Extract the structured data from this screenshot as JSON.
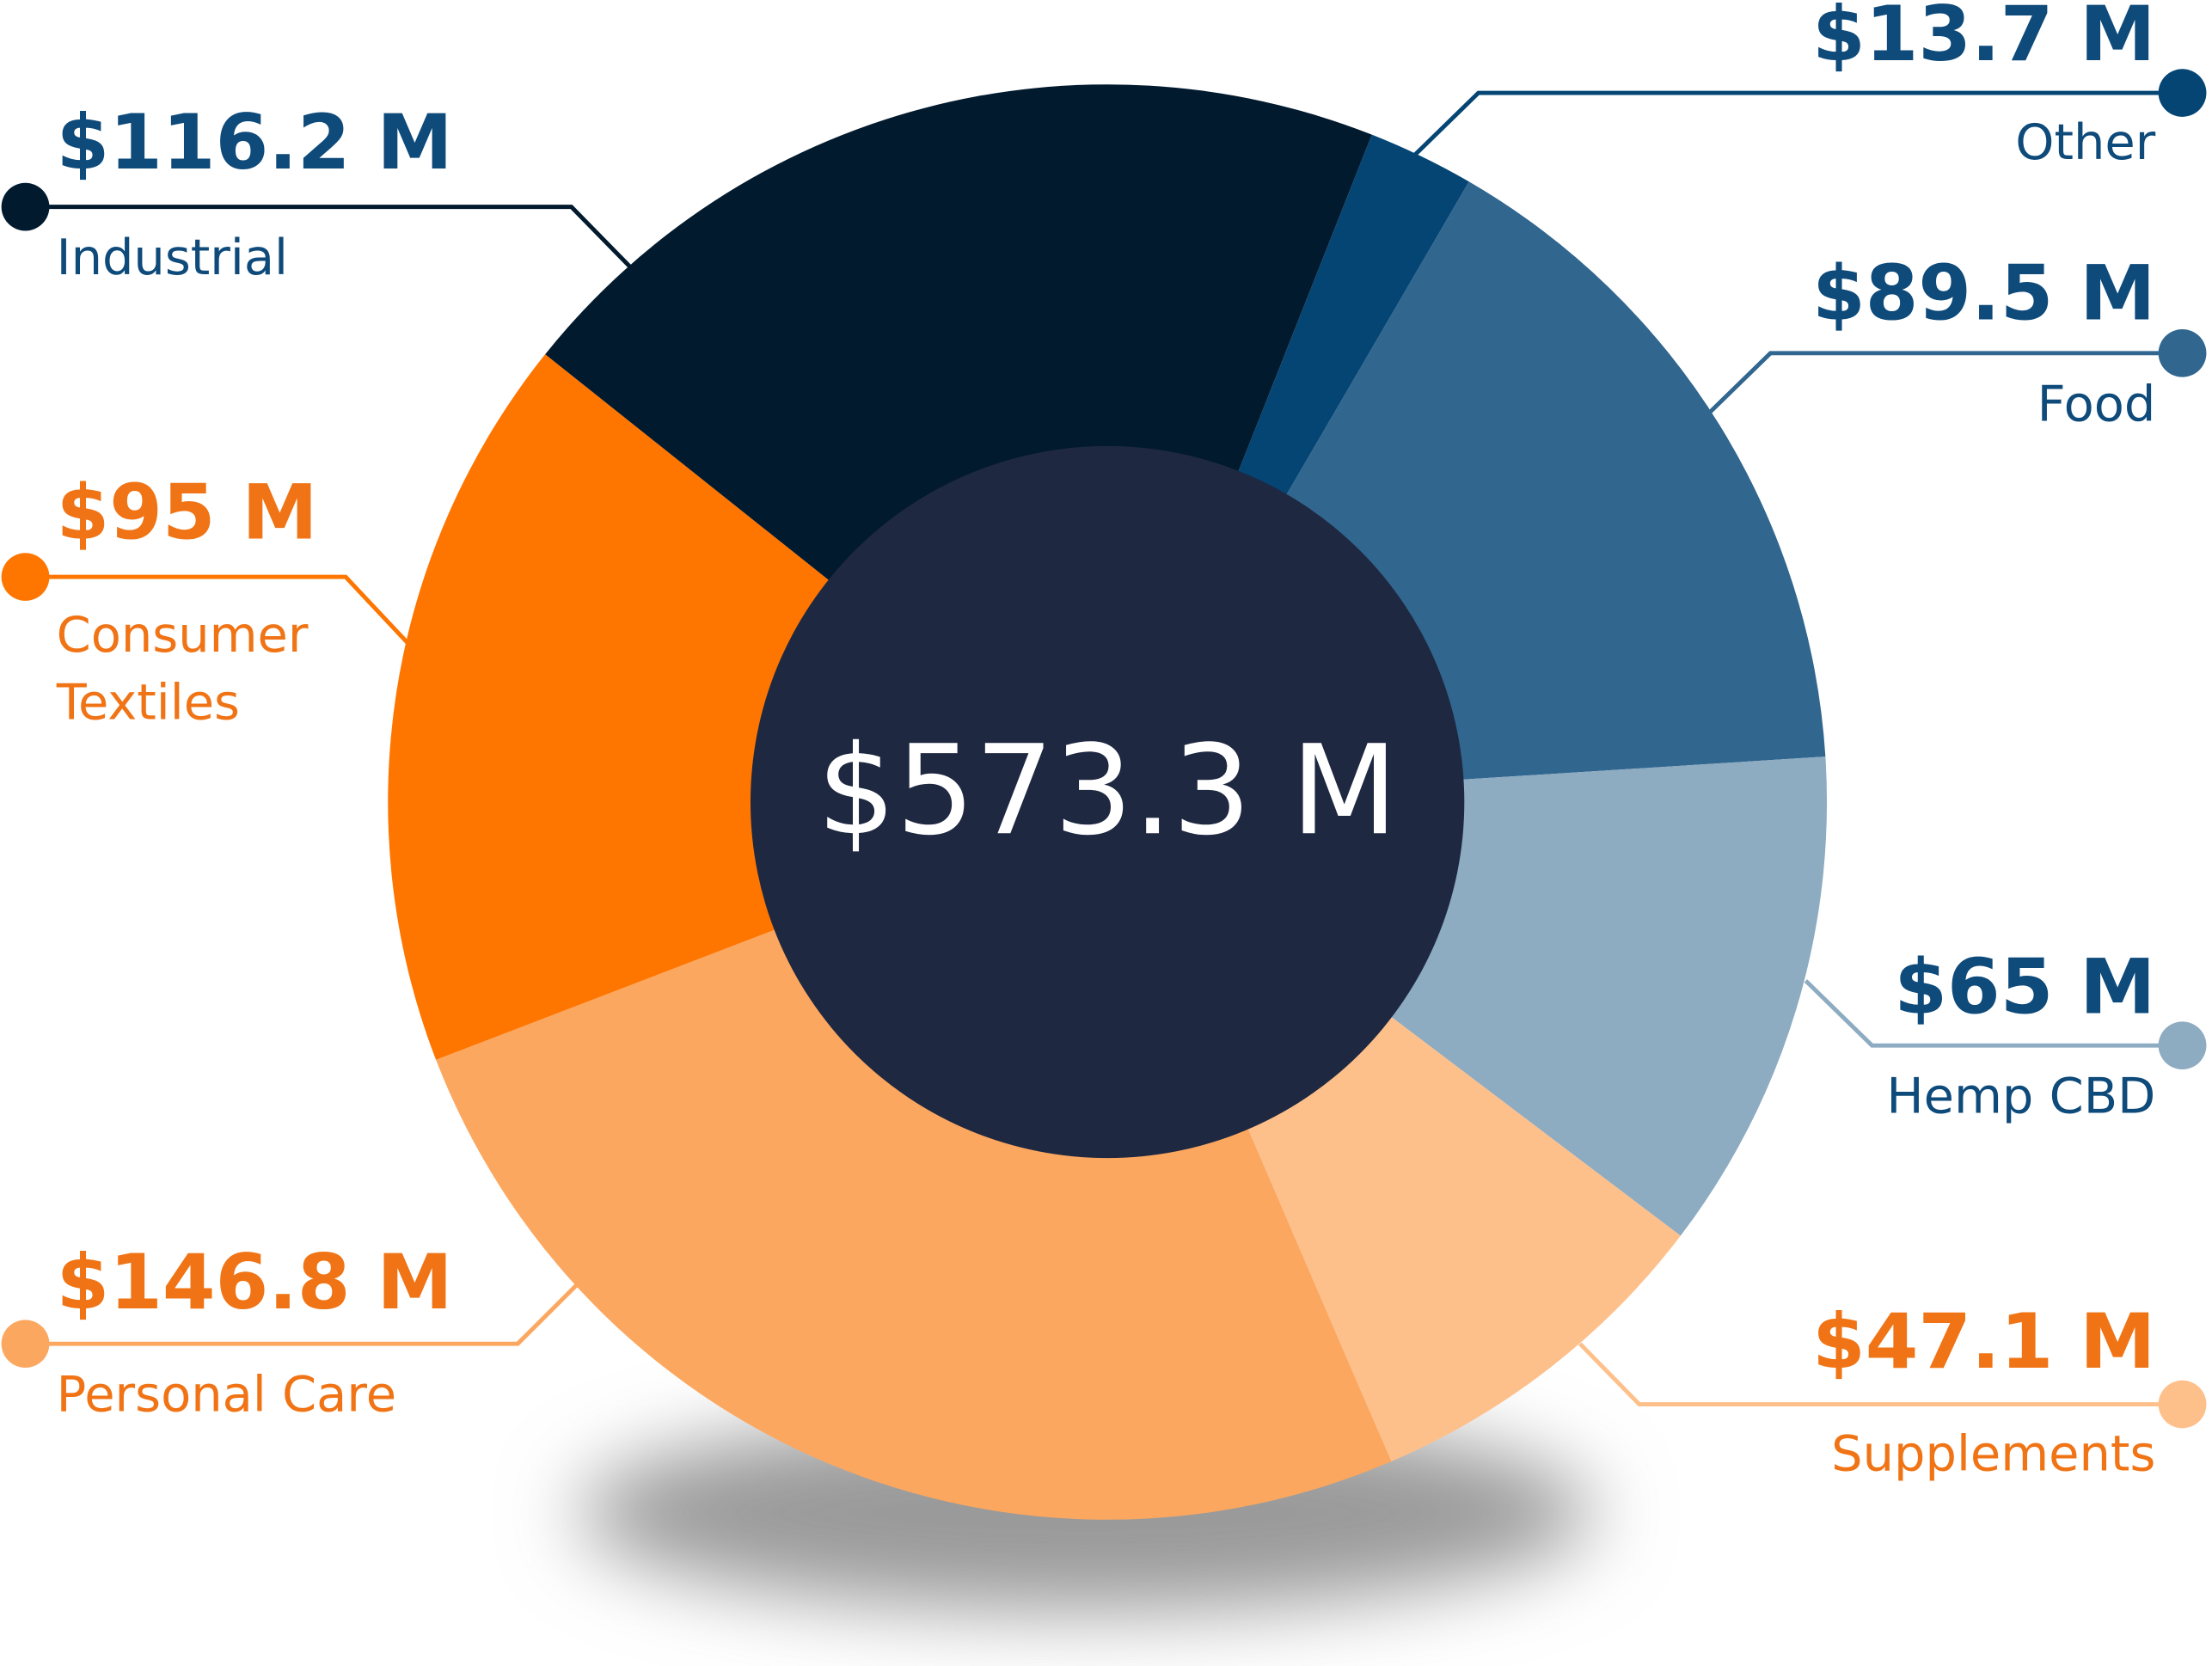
{
  "chart_data": {
    "type": "donut",
    "categories": [
      "Industrial",
      "Other",
      "Food",
      "Hemp CBD",
      "Supplements",
      "Personal Care",
      "Consumer Textiles"
    ],
    "values": [
      116.2,
      13.7,
      89.5,
      65,
      47.1,
      146.8,
      95
    ],
    "value_labels": [
      "$116.2 M",
      "$13.7 M",
      "$89.5 M",
      "$65 M",
      "$47.1 M",
      "$146.8 M",
      "$95 M"
    ],
    "colors": [
      "#021a2e",
      "#044574",
      "#31668f",
      "#8dabc1",
      "#fec08b",
      "#fca75f",
      "#fe7500"
    ],
    "total": {
      "value": 573.3,
      "label": "$573.3 M"
    }
  }
}
